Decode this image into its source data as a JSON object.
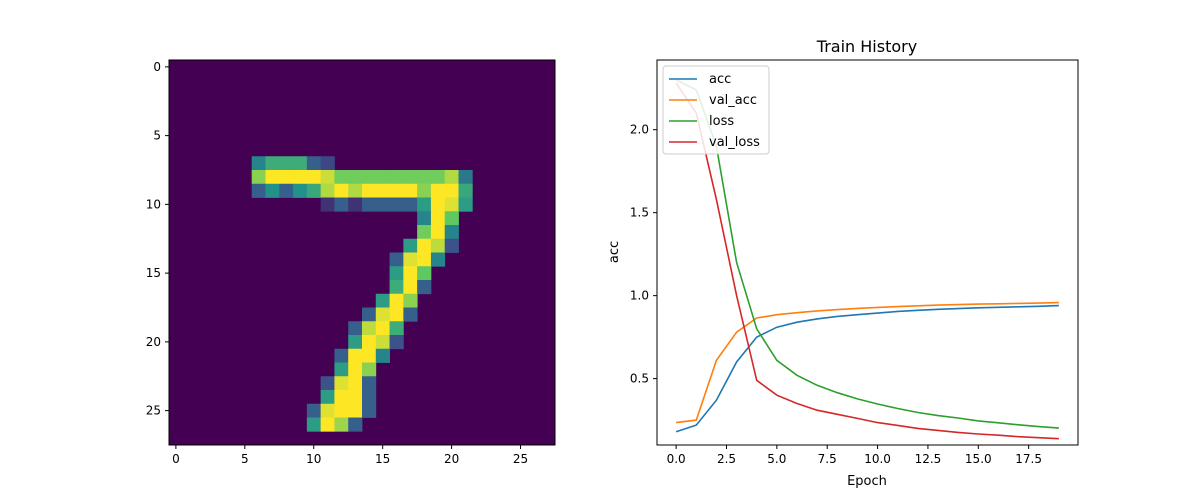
{
  "chart_data": [
    {
      "type": "heatmap",
      "colormap": "viridis",
      "rows": 28,
      "cols": 28,
      "xticks": [
        0,
        5,
        10,
        15,
        20,
        25
      ],
      "yticks": [
        0,
        5,
        10,
        15,
        20,
        25
      ],
      "xtick_labels": [
        "0",
        "5",
        "10",
        "15",
        "20",
        "25"
      ],
      "ytick_labels": [
        "0",
        "5",
        "10",
        "15",
        "20",
        "25"
      ],
      "pixels": [
        [
          7,
          6,
          0.45
        ],
        [
          7,
          7,
          0.62
        ],
        [
          7,
          8,
          0.62
        ],
        [
          7,
          9,
          0.62
        ],
        [
          7,
          10,
          0.3
        ],
        [
          7,
          11,
          0.22
        ],
        [
          8,
          6,
          0.82
        ],
        [
          8,
          7,
          1.0
        ],
        [
          8,
          8,
          1.0
        ],
        [
          8,
          9,
          1.0
        ],
        [
          8,
          10,
          1.0
        ],
        [
          8,
          11,
          0.92
        ],
        [
          8,
          12,
          0.78
        ],
        [
          8,
          13,
          0.78
        ],
        [
          8,
          14,
          0.78
        ],
        [
          8,
          15,
          0.78
        ],
        [
          8,
          16,
          0.78
        ],
        [
          8,
          17,
          0.78
        ],
        [
          8,
          18,
          0.78
        ],
        [
          8,
          19,
          0.78
        ],
        [
          8,
          20,
          0.88
        ],
        [
          8,
          21,
          0.4
        ],
        [
          9,
          6,
          0.3
        ],
        [
          9,
          7,
          0.5
        ],
        [
          9,
          8,
          0.3
        ],
        [
          9,
          9,
          0.5
        ],
        [
          9,
          10,
          0.6
        ],
        [
          9,
          11,
          0.88
        ],
        [
          9,
          12,
          1.0
        ],
        [
          9,
          13,
          0.88
        ],
        [
          9,
          14,
          1.0
        ],
        [
          9,
          15,
          1.0
        ],
        [
          9,
          16,
          1.0
        ],
        [
          9,
          17,
          1.0
        ],
        [
          9,
          18,
          0.82
        ],
        [
          9,
          19,
          1.0
        ],
        [
          9,
          20,
          1.0
        ],
        [
          9,
          21,
          0.6
        ],
        [
          10,
          11,
          0.15
        ],
        [
          10,
          12,
          0.3
        ],
        [
          10,
          13,
          0.15
        ],
        [
          10,
          14,
          0.3
        ],
        [
          10,
          15,
          0.3
        ],
        [
          10,
          16,
          0.3
        ],
        [
          10,
          17,
          0.3
        ],
        [
          10,
          18,
          0.55
        ],
        [
          10,
          19,
          1.0
        ],
        [
          10,
          20,
          0.95
        ],
        [
          10,
          21,
          0.55
        ],
        [
          11,
          18,
          0.45
        ],
        [
          11,
          19,
          1.0
        ],
        [
          11,
          20,
          0.75
        ],
        [
          12,
          18,
          0.78
        ],
        [
          12,
          19,
          1.0
        ],
        [
          12,
          20,
          0.45
        ],
        [
          13,
          17,
          0.55
        ],
        [
          13,
          18,
          1.0
        ],
        [
          13,
          19,
          0.9
        ],
        [
          13,
          20,
          0.25
        ],
        [
          14,
          16,
          0.3
        ],
        [
          14,
          17,
          0.95
        ],
        [
          14,
          18,
          1.0
        ],
        [
          14,
          19,
          0.45
        ],
        [
          15,
          16,
          0.55
        ],
        [
          15,
          17,
          1.0
        ],
        [
          15,
          18,
          0.75
        ],
        [
          16,
          16,
          0.62
        ],
        [
          16,
          17,
          1.0
        ],
        [
          16,
          18,
          0.3
        ],
        [
          17,
          15,
          0.55
        ],
        [
          17,
          16,
          1.0
        ],
        [
          17,
          17,
          0.82
        ],
        [
          18,
          14,
          0.3
        ],
        [
          18,
          15,
          0.95
        ],
        [
          18,
          16,
          1.0
        ],
        [
          18,
          17,
          0.3
        ],
        [
          19,
          13,
          0.3
        ],
        [
          19,
          14,
          0.9
        ],
        [
          19,
          15,
          1.0
        ],
        [
          19,
          16,
          0.62
        ],
        [
          20,
          13,
          0.55
        ],
        [
          20,
          14,
          1.0
        ],
        [
          20,
          15,
          0.92
        ],
        [
          20,
          16,
          0.25
        ],
        [
          21,
          12,
          0.3
        ],
        [
          21,
          13,
          1.0
        ],
        [
          21,
          14,
          1.0
        ],
        [
          21,
          15,
          0.45
        ],
        [
          22,
          12,
          0.55
        ],
        [
          22,
          13,
          1.0
        ],
        [
          22,
          14,
          0.82
        ],
        [
          23,
          11,
          0.25
        ],
        [
          23,
          12,
          0.95
        ],
        [
          23,
          13,
          1.0
        ],
        [
          23,
          14,
          0.3
        ],
        [
          24,
          11,
          0.55
        ],
        [
          24,
          12,
          1.0
        ],
        [
          24,
          13,
          1.0
        ],
        [
          24,
          14,
          0.3
        ],
        [
          25,
          10,
          0.3
        ],
        [
          25,
          11,
          0.95
        ],
        [
          25,
          12,
          1.0
        ],
        [
          25,
          13,
          1.0
        ],
        [
          25,
          14,
          0.3
        ],
        [
          26,
          10,
          0.55
        ],
        [
          26,
          11,
          1.0
        ],
        [
          26,
          12,
          0.85
        ],
        [
          26,
          13,
          0.3
        ]
      ]
    },
    {
      "type": "line",
      "title": "Train History",
      "xlabel": "Epoch",
      "ylabel": "acc",
      "legend_position": "upper left",
      "xlim": [
        -0.95,
        19.95
      ],
      "ylim": [
        0.1,
        2.42
      ],
      "xticks": [
        0,
        2.5,
        5,
        7.5,
        10,
        12.5,
        15,
        17.5
      ],
      "xtick_labels": [
        "0.0",
        "2.5",
        "5.0",
        "7.5",
        "10.0",
        "12.5",
        "15.0",
        "17.5"
      ],
      "yticks": [
        0.5,
        1.0,
        1.5,
        2.0
      ],
      "ytick_labels": [
        "0.5",
        "1.0",
        "1.5",
        "2.0"
      ],
      "x": [
        0,
        1,
        2,
        3,
        4,
        5,
        6,
        7,
        8,
        9,
        10,
        11,
        12,
        13,
        14,
        15,
        16,
        17,
        18,
        19
      ],
      "series": [
        {
          "name": "acc",
          "color": "#1f77b4",
          "values": [
            0.18,
            0.22,
            0.37,
            0.6,
            0.75,
            0.81,
            0.84,
            0.86,
            0.875,
            0.885,
            0.895,
            0.905,
            0.912,
            0.918,
            0.922,
            0.927,
            0.93,
            0.933,
            0.936,
            0.94
          ]
        },
        {
          "name": "val_acc",
          "color": "#ff7f0e",
          "values": [
            0.235,
            0.25,
            0.61,
            0.78,
            0.865,
            0.885,
            0.897,
            0.908,
            0.916,
            0.923,
            0.929,
            0.934,
            0.939,
            0.943,
            0.946,
            0.949,
            0.951,
            0.953,
            0.955,
            0.958
          ]
        },
        {
          "name": "loss",
          "color": "#2ca02c",
          "values": [
            2.3,
            2.24,
            1.9,
            1.2,
            0.8,
            0.61,
            0.52,
            0.46,
            0.415,
            0.378,
            0.347,
            0.32,
            0.296,
            0.277,
            0.263,
            0.245,
            0.234,
            0.222,
            0.211,
            0.202
          ]
        },
        {
          "name": "val_loss",
          "color": "#d62728",
          "values": [
            2.28,
            2.1,
            1.58,
            1.0,
            0.49,
            0.4,
            0.35,
            0.31,
            0.285,
            0.26,
            0.235,
            0.218,
            0.2,
            0.188,
            0.176,
            0.166,
            0.159,
            0.15,
            0.144,
            0.138
          ]
        }
      ]
    }
  ]
}
